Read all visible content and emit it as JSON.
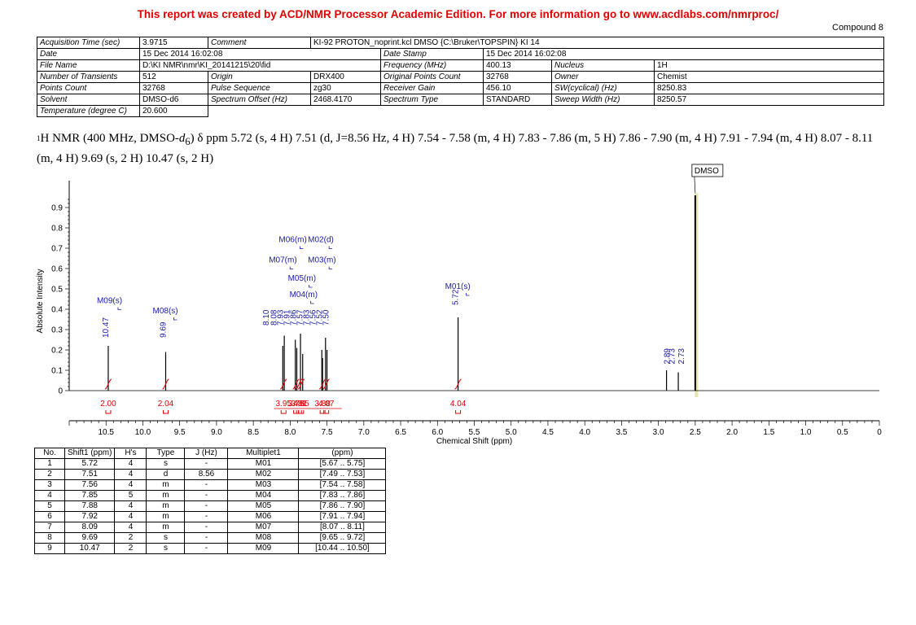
{
  "banner": "This report was created by ACD/NMR Processor Academic Edition. For more information go to www.acdlabs.com/nmrproc/",
  "compound": "Compound 8",
  "meta": {
    "acq_time_label": "Acquisition Time (sec)",
    "acq_time": "3.9715",
    "comment_label": "Comment",
    "comment": "KI-92 PROTON_noprint.kcl DMSO {C:\\Bruker\\TOPSPIN} KI 14",
    "date_label": "Date",
    "date": "15 Dec 2014 16:02:08",
    "date_stamp_label": "Date Stamp",
    "date_stamp": "15 Dec 2014 16:02:08",
    "file_name_label": "File Name",
    "file_name": "D:\\KI NMR\\nmr\\KI_20141215\\20\\fid",
    "frequency_label": "Frequency (MHz)",
    "frequency": "400.13",
    "nucleus_label": "Nucleus",
    "nucleus": "1H",
    "transients_label": "Number of Transients",
    "transients": "512",
    "origin_label": "Origin",
    "origin": "DRX400",
    "orig_points_label": "Original Points Count",
    "orig_points": "32768",
    "owner_label": "Owner",
    "owner": "Chemist",
    "points_label": "Points Count",
    "points": "32768",
    "pulse_label": "Pulse Sequence",
    "pulse": "zg30",
    "gain_label": "Receiver Gain",
    "gain": "456.10",
    "sw_label": "SW(cyclical) (Hz)",
    "sw": "8250.83",
    "solvent_label": "Solvent",
    "solvent": "DMSO-d6",
    "offset_label": "Spectrum Offset (Hz)",
    "offset": "2468.4170",
    "spec_type_label": "Spectrum Type",
    "spec_type": "STANDARD",
    "sweep_label": "Sweep Width (Hz)",
    "sweep": "8250.57",
    "temp_label": "Temperature (degree C)",
    "temp": "20.600"
  },
  "description": {
    "lead": "1",
    "nmr": "H NMR (400 MHz, DMSO-",
    "d": "d",
    "sub6": "6",
    "rest": ") δ ppm 5.72 (s, 4 H) 7.51 (d, J=8.56 Hz, 4 H) 7.54 - 7.58 (m, 4 H) 7.83 - 7.86 (m, 5 H) 7.86 - 7.90 (m, 4 H) 7.91 - 7.94 (m, 4 H) 8.07 - 8.11 (m, 4 H) 9.69 (s, 2 H) 10.47 (s, 2 H)"
  },
  "chart_data": {
    "type": "line",
    "xlabel": "Chemical Shift (ppm)",
    "ylabel": "Absolute Intensity",
    "xlim": [
      11.0,
      0.0
    ],
    "ylim": [
      0.0,
      1.0
    ],
    "x_ticks": [
      "10.5",
      "10.0",
      "9.5",
      "9.0",
      "8.5",
      "8.0",
      "7.5",
      "7.0",
      "6.5",
      "6.0",
      "5.5",
      "5.0",
      "4.5",
      "4.0",
      "3.5",
      "3.0",
      "2.5",
      "2.0",
      "1.5",
      "1.0",
      "0.5",
      "0"
    ],
    "y_ticks": [
      "0",
      "0.1",
      "0.2",
      "0.3",
      "0.4",
      "0.5",
      "0.6",
      "0.7",
      "0.8",
      "0.9"
    ],
    "peaks": [
      {
        "ppm": 10.47,
        "height": 0.22
      },
      {
        "ppm": 9.69,
        "height": 0.19
      },
      {
        "ppm": 8.1,
        "height": 0.22
      },
      {
        "ppm": 8.08,
        "height": 0.27
      },
      {
        "ppm": 7.93,
        "height": 0.25
      },
      {
        "ppm": 7.91,
        "height": 0.21
      },
      {
        "ppm": 7.86,
        "height": 0.28
      },
      {
        "ppm": 7.83,
        "height": 0.18
      },
      {
        "ppm": 7.57,
        "height": 0.2
      },
      {
        "ppm": 7.56,
        "height": 0.16
      },
      {
        "ppm": 7.52,
        "height": 0.26
      },
      {
        "ppm": 7.5,
        "height": 0.2
      },
      {
        "ppm": 5.72,
        "height": 0.36
      },
      {
        "ppm": 2.89,
        "height": 0.1
      },
      {
        "ppm": 2.73,
        "height": 0.09
      },
      {
        "ppm": 2.5,
        "height": 0.96
      }
    ],
    "peak_labels": [
      {
        "text": "10.47",
        "ppm": 10.47
      },
      {
        "text": "9.69",
        "ppm": 9.69
      },
      {
        "text": "8.10",
        "ppm": 8.1
      },
      {
        "text": "8.08",
        "ppm": 8.08
      },
      {
        "text": "7.93",
        "ppm": 7.93
      },
      {
        "text": "7.91",
        "ppm": 7.91
      },
      {
        "text": "7.86",
        "ppm": 7.86
      },
      {
        "text": "7.57",
        "ppm": 7.57
      },
      {
        "text": "7.83",
        "ppm": 7.83
      },
      {
        "text": "7.56",
        "ppm": 7.56
      },
      {
        "text": "7.52",
        "ppm": 7.52
      },
      {
        "text": "7.50",
        "ppm": 7.5
      },
      {
        "text": "5.72",
        "ppm": 5.72
      },
      {
        "text": "2.89",
        "ppm": 2.89
      },
      {
        "text": "2.73",
        "ppm": 2.73
      },
      {
        "text": "2.73",
        "ppm": 2.71
      }
    ],
    "multiplets": [
      {
        "text": "M09(s)",
        "ppm": 10.47
      },
      {
        "text": "M08(s)",
        "ppm": 9.69
      },
      {
        "text": "M06(m)",
        "ppm": 7.92
      },
      {
        "text": "M02(d)",
        "ppm": 7.51
      },
      {
        "text": "M07(m)",
        "ppm": 8.09
      },
      {
        "text": "M03(m)",
        "ppm": 7.56
      },
      {
        "text": "M05(m)",
        "ppm": 7.88
      },
      {
        "text": "M04(m)",
        "ppm": 7.85
      },
      {
        "text": "M01(s)",
        "ppm": 5.72
      }
    ],
    "solvent_label": "DMSO",
    "integrals": [
      {
        "text": "2.00",
        "ppm": 10.47
      },
      {
        "text": "2.04",
        "ppm": 9.69
      },
      {
        "text": "3.95",
        "ppm": 8.09
      },
      {
        "text": "3.78",
        "ppm": 7.92
      },
      {
        "text": "3.81",
        "ppm": 7.88
      },
      {
        "text": "4.55",
        "ppm": 7.85
      },
      {
        "text": "3.88",
        "ppm": 7.56
      },
      {
        "text": "4.07",
        "ppm": 7.51
      },
      {
        "text": "4.04",
        "ppm": 5.72
      }
    ],
    "colors": {
      "spectrum": "#000000",
      "labels": "#1a1aa6",
      "integrals": "#e00000",
      "solvent_band": "#e8e4b0"
    }
  },
  "peak_table": {
    "headers": [
      "No.",
      "Shift1 (ppm)",
      "H's",
      "Type",
      "J (Hz)",
      "Multiplet1",
      "(ppm)"
    ],
    "rows": [
      [
        "1",
        "5.72",
        "4",
        "s",
        "-",
        "M01",
        "[5.67 .. 5.75]"
      ],
      [
        "2",
        "7.51",
        "4",
        "d",
        "8.56",
        "M02",
        "[7.49 .. 7.53]"
      ],
      [
        "3",
        "7.56",
        "4",
        "m",
        "-",
        "M03",
        "[7.54 .. 7.58]"
      ],
      [
        "4",
        "7.85",
        "5",
        "m",
        "-",
        "M04",
        "[7.83 .. 7.86]"
      ],
      [
        "5",
        "7.88",
        "4",
        "m",
        "-",
        "M05",
        "[7.86 .. 7.90]"
      ],
      [
        "6",
        "7.92",
        "4",
        "m",
        "-",
        "M06",
        "[7.91 .. 7.94]"
      ],
      [
        "7",
        "8.09",
        "4",
        "m",
        "-",
        "M07",
        "[8.07 .. 8.11]"
      ],
      [
        "8",
        "9.69",
        "2",
        "s",
        "-",
        "M08",
        "[9.65 .. 9.72]"
      ],
      [
        "9",
        "10.47",
        "2",
        "s",
        "-",
        "M09",
        "[10.44 .. 10.50]"
      ]
    ]
  }
}
